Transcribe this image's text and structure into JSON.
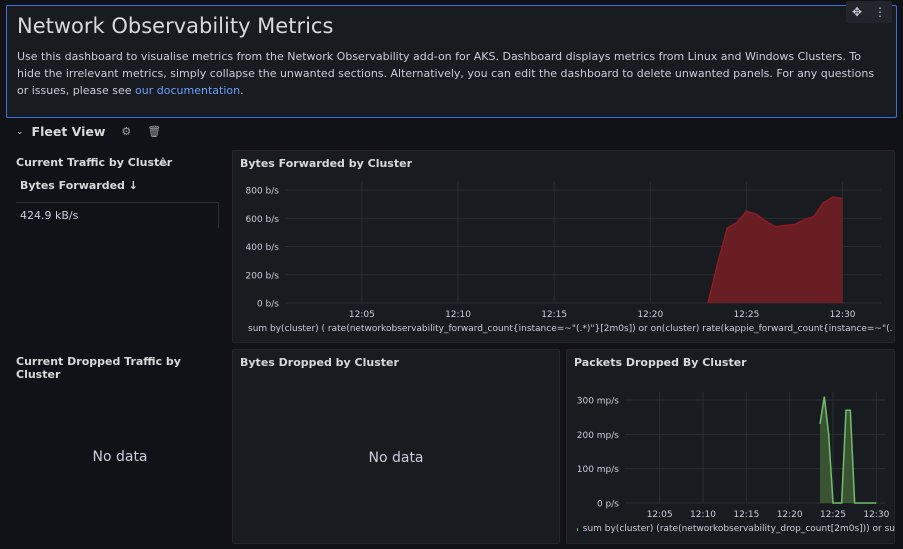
{
  "header": {
    "title": "Network Observability Metrics",
    "description": "Use this dashboard to visualise metrics from the Network Observability add-on for AKS. Dashboard displays metrics from Linux and Windows Clusters. To hide the irrelevant metrics, simply collapse the unwanted sections. Alternatively, you can edit the dashboard to delete unwanted panels. For any questions or issues, please see ",
    "link_text": "our documentation",
    "after_link": ".",
    "menu_icons": [
      "move-icon",
      "more-vertical-icon"
    ]
  },
  "row": {
    "title": "Fleet View",
    "icons": [
      "gear-icon",
      "trash-icon"
    ]
  },
  "current_traffic": {
    "title": "Current Traffic by Cluster",
    "column_header": "Bytes Forwarded",
    "value": "424.9 kB/s"
  },
  "bytes_forwarded": {
    "title": "Bytes Forwarded by Cluster",
    "legend": "sum by(cluster) ( rate(networkobservability_forward_count{instance=~\"(.*)\"}[2m0s]) or on(cluster) rate(kappie_forward_count{instance=~\"(.*)\"}[",
    "series_color": "#1f60c4",
    "fill_color": "#6e1f25",
    "line_color": "#8f1a21"
  },
  "current_dropped": {
    "title": "Current Dropped Traffic by Cluster",
    "no_data": "No data"
  },
  "bytes_dropped": {
    "title": "Bytes Dropped by Cluster",
    "no_data": "No data"
  },
  "packets_dropped": {
    "title": "Packets Dropped By Cluster",
    "legend": "sum by(cluster) (rate(networkobservability_drop_count[2m0s])) or su",
    "series_color": "#73bf69",
    "fill_color": "#3d5a35"
  },
  "chart_data": [
    {
      "type": "area",
      "title": "Bytes Forwarded by Cluster",
      "x_ticks": [
        "12:05",
        "12:10",
        "12:15",
        "12:20",
        "12:25",
        "12:30"
      ],
      "y_ticks": [
        "0 b/s",
        "200 b/s",
        "400 b/s",
        "600 b/s",
        "800 b/s"
      ],
      "ylim": [
        0,
        800
      ],
      "x": [
        "12:23:00",
        "12:23:30",
        "12:24:00",
        "12:24:30",
        "12:25:00",
        "12:25:30",
        "12:26:00",
        "12:26:30",
        "12:27:00",
        "12:27:30",
        "12:28:00",
        "12:28:30",
        "12:29:00",
        "12:29:30",
        "12:30:00"
      ],
      "series": [
        {
          "values": [
            0,
            280,
            530,
            570,
            650,
            630,
            580,
            540,
            550,
            555,
            590,
            610,
            710,
            750,
            740
          ]
        }
      ],
      "grid": true
    },
    {
      "type": "area",
      "title": "Packets Dropped By Cluster",
      "x_ticks": [
        "12:05",
        "12:10",
        "12:15",
        "12:20",
        "12:25",
        "12:30"
      ],
      "y_ticks": [
        "0 p/s",
        "100 mp/s",
        "200 mp/s",
        "300 mp/s"
      ],
      "ylim": [
        0,
        300
      ],
      "x": [
        "12:23:30",
        "12:24:00",
        "12:24:30",
        "12:25:00",
        "12:25:30",
        "12:26:00",
        "12:26:30",
        "12:27:00",
        "12:27:30",
        "12:28:00",
        "12:28:30",
        "12:29:00",
        "12:30:00"
      ],
      "series": [
        {
          "values": [
            230,
            310,
            200,
            0,
            0,
            0,
            270,
            270,
            0,
            0,
            0,
            0,
            0
          ]
        }
      ],
      "grid": true
    }
  ]
}
